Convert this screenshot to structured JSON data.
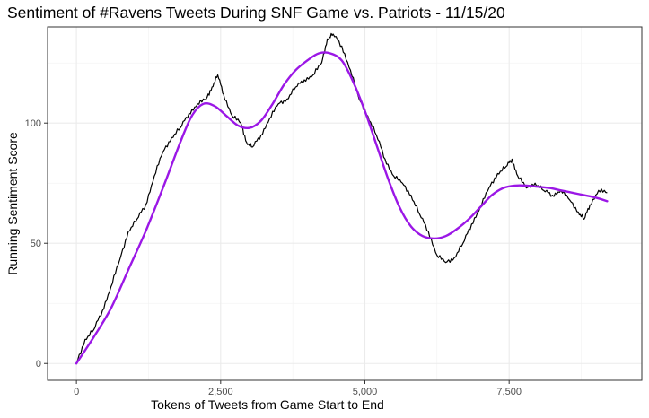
{
  "chart_data": {
    "type": "line",
    "title": "Sentiment of #Ravens Tweets During SNF Game vs. Patriots - 11/15/20",
    "xlabel": "Tokens of Tweets from Game Start to End",
    "ylabel": "Running Sentiment Score",
    "xlim": [
      -500,
      9800
    ],
    "ylim": [
      -7,
      140
    ],
    "x_ticks": [
      0,
      2500,
      5000,
      7500
    ],
    "x_tick_labels": [
      "0",
      "2,500",
      "5,000",
      "7,500"
    ],
    "y_ticks": [
      0,
      50,
      100
    ],
    "y_tick_labels": [
      "0",
      "50",
      "100"
    ],
    "grid": true,
    "legend": "none",
    "series": [
      {
        "style": "raw",
        "color": "#000000",
        "x": [
          0,
          150,
          300,
          450,
          600,
          750,
          900,
          1050,
          1200,
          1350,
          1500,
          1650,
          1800,
          1950,
          2100,
          2250,
          2350,
          2450,
          2550,
          2700,
          2850,
          2950,
          3050,
          3200,
          3350,
          3500,
          3650,
          3800,
          3950,
          4100,
          4250,
          4350,
          4450,
          4600,
          4750,
          4900,
          5050,
          5200,
          5350,
          5500,
          5650,
          5800,
          5950,
          6100,
          6250,
          6400,
          6550,
          6700,
          6850,
          7000,
          7150,
          7300,
          7450,
          7550,
          7650,
          7800,
          7950,
          8100,
          8250,
          8400,
          8550,
          8700,
          8800,
          8900,
          9050,
          9200
        ],
        "y": [
          0,
          10,
          14,
          22,
          32,
          43,
          55,
          60,
          66,
          78,
          88,
          94,
          98,
          104,
          108,
          110,
          115,
          120,
          112,
          103,
          100,
          92,
          90,
          95,
          102,
          108,
          110,
          115,
          118,
          120,
          125,
          135,
          137,
          132,
          122,
          110,
          103,
          95,
          85,
          78,
          75,
          70,
          62,
          55,
          45,
          42,
          44,
          50,
          58,
          65,
          73,
          79,
          82,
          85,
          78,
          73,
          75,
          72,
          70,
          72,
          68,
          63,
          60,
          66,
          72,
          71
        ]
      },
      {
        "style": "smooth",
        "color": "#9b17e6",
        "x": [
          0,
          300,
          600,
          900,
          1200,
          1500,
          1800,
          2000,
          2200,
          2400,
          2600,
          2800,
          3000,
          3200,
          3400,
          3600,
          3800,
          4000,
          4200,
          4400,
          4600,
          4800,
          5000,
          5200,
          5400,
          5600,
          5800,
          6000,
          6200,
          6400,
          6600,
          6800,
          7000,
          7200,
          7400,
          7600,
          7800,
          8000,
          8200,
          8400,
          8600,
          8800,
          9000,
          9200
        ],
        "y": [
          0,
          11,
          23,
          39,
          55,
          73,
          92,
          103,
          108,
          107,
          103,
          99,
          98,
          101,
          108,
          116,
          122,
          126,
          129,
          129,
          126,
          117,
          105,
          91,
          77,
          65,
          57,
          53,
          52,
          53,
          56,
          60,
          65,
          70,
          73,
          74,
          74,
          73.5,
          73,
          72,
          71,
          70,
          69,
          67.5
        ]
      }
    ]
  }
}
